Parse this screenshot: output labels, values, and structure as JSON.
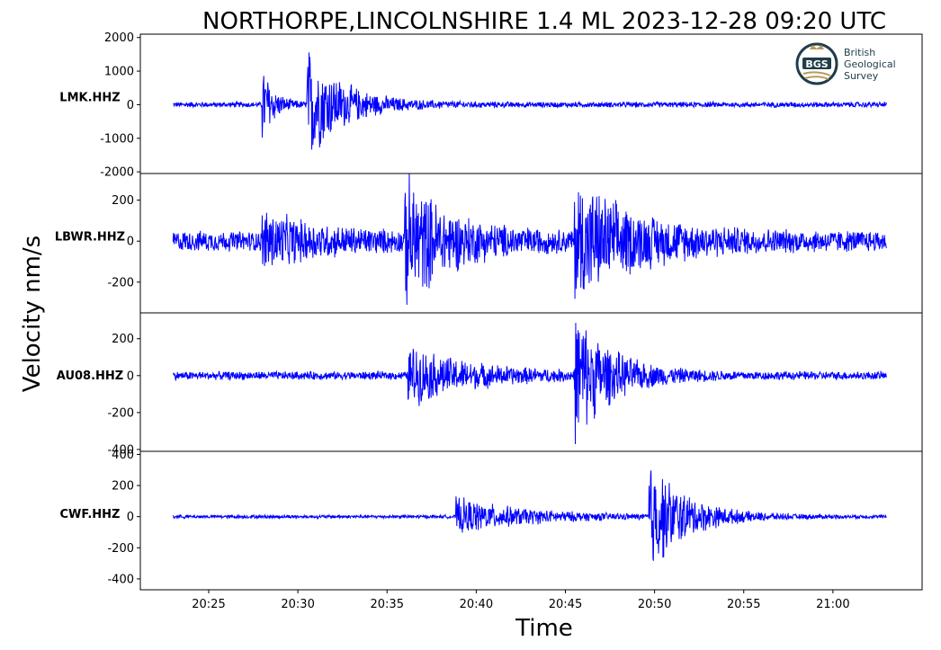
{
  "title": "NORTHORPE,LINCOLNSHIRE 1.4 ML   2023-12-28 09:20 UTC",
  "logo": {
    "abbr": "BGS",
    "lines": [
      "British",
      "Geological",
      "Survey"
    ]
  },
  "colors": {
    "trace": "#0000ff",
    "axes": "#000000",
    "logo_ring": "#1f3d4a",
    "logo_gold": "#b89a5a"
  },
  "chart_data": {
    "type": "line",
    "title": "NORTHORPE,LINCOLNSHIRE 1.4 ML   2023-12-28 09:20 UTC",
    "xlabel": "Time",
    "ylabel": "Velocity nm/s",
    "xlim": [
      "20:21:10",
      "21:05:00"
    ],
    "x_ticks": [
      "20:25",
      "20:30",
      "20:35",
      "20:40",
      "20:45",
      "20:50",
      "20:55",
      "21:00"
    ],
    "grid": false,
    "panels": [
      {
        "name": "LMK.HHZ",
        "ylim": [
          -2050,
          2100
        ],
        "y_ticks": [
          2000,
          1000,
          0,
          -1000,
          -2000
        ],
        "y_tick_labels": [
          "2000",
          "1000",
          "0",
          "-1000",
          "-2000"
        ],
        "trace_start": "20:23:00",
        "trace_end": "21:03:00",
        "noise": 90,
        "events": [
          {
            "time": "20:28:00",
            "peak": 1400,
            "decay": 0.6
          },
          {
            "time": "20:30:30",
            "peak": 1900,
            "decay": 2.0
          }
        ]
      },
      {
        "name": "LBWR.HHZ",
        "ylim": [
          -350,
          330
        ],
        "y_ticks": [
          200,
          0,
          -200
        ],
        "y_tick_labels": [
          "200",
          "0",
          "-200"
        ],
        "trace_start": "20:23:00",
        "trace_end": "21:03:00",
        "noise": 55,
        "events": [
          {
            "time": "20:28:00",
            "peak": 130,
            "decay": 3.0
          },
          {
            "time": "20:36:00",
            "peak": 320,
            "decay": 2.5
          },
          {
            "time": "20:45:30",
            "peak": 300,
            "decay": 3.5
          }
        ]
      },
      {
        "name": "AU08.HHZ",
        "ylim": [
          -410,
          340
        ],
        "y_ticks": [
          200,
          0,
          -200,
          -400
        ],
        "y_tick_labels": [
          "200",
          "0",
          "-200",
          "-400"
        ],
        "trace_start": "20:23:00",
        "trace_end": "21:03:00",
        "noise": 25,
        "events": [
          {
            "time": "20:36:10",
            "peak": 170,
            "decay": 3.5
          },
          {
            "time": "20:45:30",
            "peak": 380,
            "decay": 2.0
          }
        ]
      },
      {
        "name": "CWF.HHZ",
        "ylim": [
          -470,
          420
        ],
        "y_ticks": [
          400,
          200,
          0,
          -200,
          -400
        ],
        "y_tick_labels": [
          "400",
          "200",
          "0",
          "-200",
          "-400"
        ],
        "trace_start": "20:23:00",
        "trace_end": "21:03:00",
        "noise": 12,
        "events": [
          {
            "time": "20:38:50",
            "peak": 130,
            "decay": 4.0
          },
          {
            "time": "20:49:40",
            "peak": 420,
            "decay": 2.0
          }
        ]
      }
    ]
  }
}
